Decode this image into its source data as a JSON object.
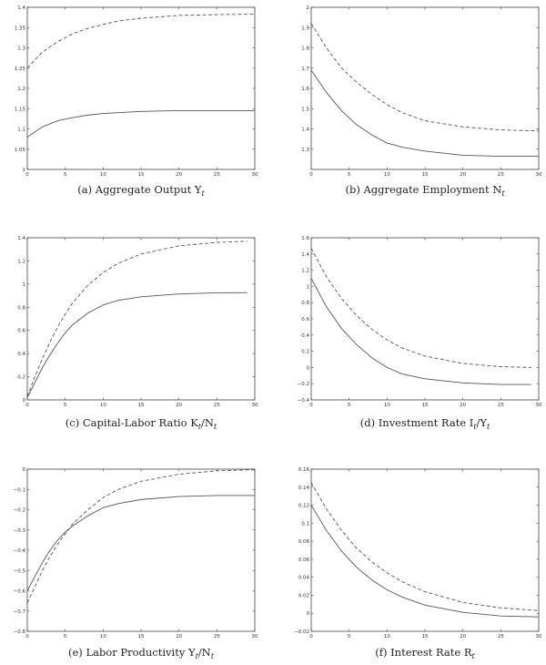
{
  "chart_data": [
    {
      "type": "line",
      "caption": "(a)  Aggregate Output Y",
      "caption_sub": "t",
      "xlim": [
        0,
        30
      ],
      "ylim": [
        1.0,
        1.4
      ],
      "xticks": [
        "0",
        "5",
        "10",
        "15",
        "20",
        "25",
        "30"
      ],
      "yticks": [
        "1",
        "1.05",
        "1.1",
        "1.15",
        "1.2",
        "1.25",
        "1.3",
        "1.35",
        "1.4"
      ],
      "series": [
        {
          "style": "solid",
          "x": [
            0,
            2,
            4,
            6,
            8,
            10,
            12,
            15,
            20,
            25,
            30
          ],
          "y": [
            1.08,
            1.105,
            1.12,
            1.128,
            1.134,
            1.138,
            1.14,
            1.143,
            1.145,
            1.145,
            1.145
          ]
        },
        {
          "style": "dashed",
          "x": [
            0,
            2,
            4,
            6,
            8,
            10,
            12,
            15,
            20,
            25,
            30
          ],
          "y": [
            1.25,
            1.29,
            1.315,
            1.335,
            1.348,
            1.358,
            1.366,
            1.373,
            1.38,
            1.382,
            1.383
          ]
        }
      ]
    },
    {
      "type": "line",
      "caption": "(b)  Aggregate Employment N",
      "caption_sub": "t",
      "xlim": [
        0,
        30
      ],
      "ylim": [
        1.2,
        2.0
      ],
      "xticks": [
        "0",
        "5",
        "10",
        "15",
        "20",
        "25",
        "30"
      ],
      "yticks": [
        "1.3",
        "1.4",
        "1.5",
        "1.6",
        "1.7",
        "1.8",
        "1.9",
        "2"
      ],
      "series": [
        {
          "style": "solid",
          "x": [
            0,
            2,
            4,
            6,
            8,
            10,
            12,
            15,
            20,
            25,
            30
          ],
          "y": [
            1.69,
            1.58,
            1.49,
            1.42,
            1.37,
            1.33,
            1.31,
            1.29,
            1.27,
            1.265,
            1.265
          ]
        },
        {
          "style": "dashed",
          "x": [
            0,
            2,
            4,
            6,
            8,
            10,
            12,
            15,
            20,
            25,
            30
          ],
          "y": [
            1.92,
            1.8,
            1.7,
            1.63,
            1.57,
            1.52,
            1.48,
            1.44,
            1.41,
            1.395,
            1.39
          ]
        }
      ]
    },
    {
      "type": "line",
      "caption": "(c)  Capital-Labor Ratio K",
      "caption_sub": "t",
      "caption_tail": "/N",
      "caption_tail_sub": "t",
      "xlim": [
        0,
        30
      ],
      "ylim": [
        0,
        1.4
      ],
      "xticks": [
        "0",
        "5",
        "10",
        "15",
        "20",
        "25",
        "30"
      ],
      "yticks": [
        "0",
        "0.2",
        "0.4",
        "0.6",
        "0.8",
        "1",
        "1.2",
        "1.4"
      ],
      "series": [
        {
          "style": "solid",
          "x": [
            0,
            1,
            2,
            3,
            4,
            5,
            6,
            8,
            10,
            12,
            15,
            20,
            25,
            29
          ],
          "y": [
            0.02,
            0.15,
            0.28,
            0.39,
            0.49,
            0.58,
            0.65,
            0.75,
            0.82,
            0.86,
            0.89,
            0.915,
            0.925,
            0.927
          ]
        },
        {
          "style": "dashed",
          "x": [
            0,
            1,
            2,
            3,
            4,
            5,
            6,
            8,
            10,
            12,
            15,
            20,
            25,
            29
          ],
          "y": [
            0.03,
            0.2,
            0.36,
            0.5,
            0.63,
            0.74,
            0.84,
            0.99,
            1.1,
            1.18,
            1.26,
            1.33,
            1.36,
            1.37
          ]
        }
      ]
    },
    {
      "type": "line",
      "caption": "(d)  Investment Rate I",
      "caption_sub": "t",
      "caption_tail": "/Y",
      "caption_tail_sub": "t",
      "xlim": [
        0,
        30
      ],
      "ylim": [
        -0.4,
        1.6
      ],
      "xticks": [
        "0",
        "5",
        "10",
        "15",
        "20",
        "25",
        "30"
      ],
      "yticks": [
        "−0.4",
        "−0.2",
        "0",
        "0.2",
        "0.4",
        "0.6",
        "0.8",
        "1",
        "1.2",
        "1.4",
        "1.6"
      ],
      "series": [
        {
          "style": "solid",
          "x": [
            0,
            2,
            4,
            6,
            8,
            10,
            12,
            15,
            20,
            25,
            29
          ],
          "y": [
            1.1,
            0.75,
            0.48,
            0.28,
            0.12,
            0.0,
            -0.08,
            -0.14,
            -0.19,
            -0.21,
            -0.21
          ]
        },
        {
          "style": "dashed",
          "x": [
            0,
            2,
            4,
            6,
            8,
            10,
            12,
            15,
            20,
            25,
            29
          ],
          "y": [
            1.47,
            1.12,
            0.85,
            0.64,
            0.47,
            0.34,
            0.24,
            0.14,
            0.05,
            0.01,
            0.0
          ]
        }
      ]
    },
    {
      "type": "line",
      "caption": "(e)  Labor Productivity Y",
      "caption_sub": "t",
      "caption_tail": "/N",
      "caption_tail_sub": "t",
      "xlim": [
        0,
        30
      ],
      "ylim": [
        -0.8,
        0
      ],
      "xticks": [
        "0",
        "5",
        "10",
        "15",
        "20",
        "25",
        "30"
      ],
      "yticks": [
        "−0.8",
        "−0.7",
        "−0.6",
        "−0.5",
        "−0.4",
        "−0.3",
        "−0.2",
        "−0.1",
        "0"
      ],
      "series": [
        {
          "style": "solid",
          "x": [
            0,
            1,
            2,
            3,
            4,
            5,
            6,
            8,
            10,
            12,
            15,
            20,
            25,
            30
          ],
          "y": [
            -0.6,
            -0.53,
            -0.46,
            -0.4,
            -0.35,
            -0.31,
            -0.28,
            -0.23,
            -0.19,
            -0.17,
            -0.15,
            -0.135,
            -0.13,
            -0.13
          ]
        },
        {
          "style": "dashed",
          "x": [
            0,
            1,
            2,
            3,
            4,
            5,
            6,
            8,
            10,
            12,
            15,
            20,
            25,
            30
          ],
          "y": [
            -0.66,
            -0.58,
            -0.5,
            -0.43,
            -0.37,
            -0.32,
            -0.27,
            -0.2,
            -0.14,
            -0.1,
            -0.06,
            -0.025,
            -0.008,
            -0.003
          ]
        }
      ]
    },
    {
      "type": "line",
      "caption": "(f)  Interest Rate R",
      "caption_sub": "t",
      "xlim": [
        0,
        30
      ],
      "ylim": [
        -0.02,
        0.16
      ],
      "xticks": [
        "0",
        "5",
        "10",
        "15",
        "20",
        "25",
        "30"
      ],
      "yticks": [
        "−0.02",
        "0",
        "0.02",
        "0.04",
        "0.06",
        "0.08",
        "0.1",
        "0.12",
        "0.14",
        "0.16"
      ],
      "series": [
        {
          "style": "solid",
          "x": [
            0,
            2,
            4,
            6,
            8,
            10,
            12,
            15,
            20,
            25,
            30
          ],
          "y": [
            0.12,
            0.092,
            0.069,
            0.051,
            0.037,
            0.026,
            0.018,
            0.009,
            0.001,
            -0.003,
            -0.004
          ]
        },
        {
          "style": "dashed",
          "x": [
            0,
            2,
            4,
            6,
            8,
            10,
            12,
            15,
            20,
            25,
            30
          ],
          "y": [
            0.145,
            0.116,
            0.092,
            0.072,
            0.057,
            0.045,
            0.035,
            0.024,
            0.012,
            0.006,
            0.003
          ]
        }
      ]
    }
  ]
}
